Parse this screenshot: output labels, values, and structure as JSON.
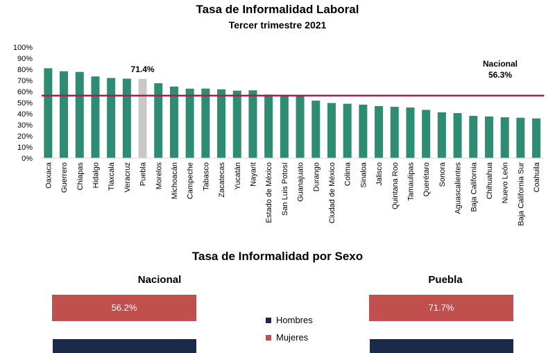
{
  "chart_data": [
    {
      "type": "bar",
      "title": "Tasa de Informalidad Laboral",
      "subtitle": "Tercer trimestre 2021",
      "categories": [
        "Oaxaca",
        "Guerrero",
        "Chiapas",
        "Hidalgo",
        "Tlaxcala",
        "Veracruz",
        "Puebla",
        "Morelos",
        "Michoacán",
        "Campeche",
        "Tabasco",
        "Zacatecas",
        "Yucatán",
        "Nayarit",
        "Estado de México",
        "San Luis Potosí",
        "Guanajuato",
        "Durango",
        "Ciudad de México",
        "Colima",
        "Sinaloa",
        "Jalisco",
        "Quintana Roo",
        "Tamaulipas",
        "Querétaro",
        "Sonora",
        "Aguascalientes",
        "Baja California",
        "Chihuahua",
        "Nuevo León",
        "Baja California Sur",
        "Coahuila"
      ],
      "values": [
        81.0,
        78.3,
        77.7,
        73.6,
        72.2,
        71.6,
        71.4,
        67.5,
        64.5,
        62.6,
        62.7,
        62.0,
        60.8,
        61.1,
        57.3,
        56.9,
        56.4,
        51.8,
        49.7,
        49.0,
        48.2,
        46.9,
        46.2,
        45.6,
        43.5,
        41.3,
        40.6,
        38.1,
        37.5,
        36.8,
        36.4,
        35.8
      ],
      "highlight": {
        "category": "Puebla",
        "label": "71.4%"
      },
      "reference_line": {
        "label": "Nacional",
        "value_label": "56.3%",
        "value": 56.3
      },
      "ylim": [
        0,
        100
      ],
      "yticks": [
        "0%",
        "10%",
        "20%",
        "30%",
        "40%",
        "50%",
        "60%",
        "70%",
        "80%",
        "90%",
        "100%"
      ],
      "colors": {
        "bar": "#2e8b74",
        "highlight": "#c8c8c8",
        "line": "#9b2346"
      }
    },
    {
      "type": "bar",
      "title": "Tasa de Informalidad por Sexo",
      "panels": [
        {
          "name": "Nacional",
          "mujeres_label": "56.2%",
          "mujeres": 56.2
        },
        {
          "name": "Puebla",
          "mujeres_label": "71.7%",
          "mujeres": 71.7
        }
      ],
      "legend": [
        "Hombres",
        "Mujeres"
      ],
      "colors": {
        "hombres": "#1b2a4a",
        "mujeres": "#c0504d"
      }
    }
  ]
}
